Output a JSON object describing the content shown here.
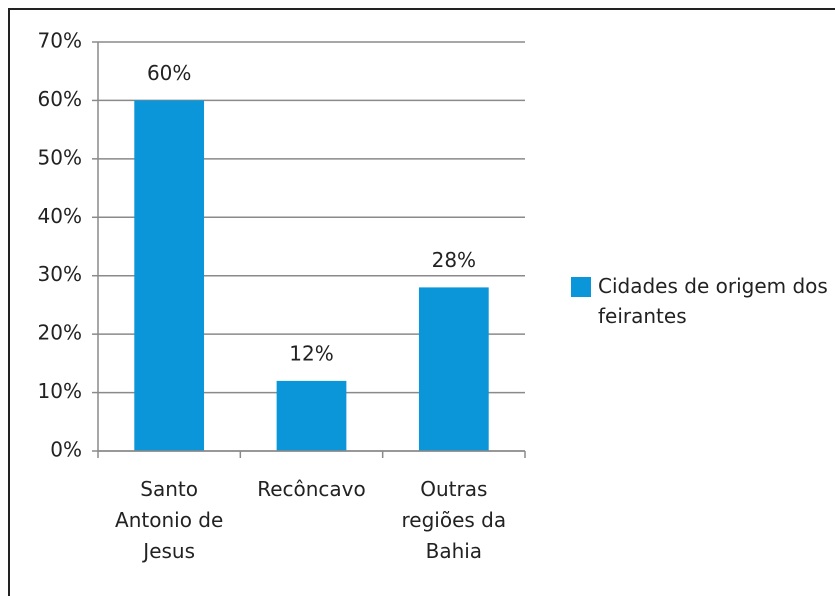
{
  "chart_data": {
    "type": "bar",
    "categories": [
      "Santo Antonio de Jesus",
      "Recôncavo",
      "Outras regiões da Bahia"
    ],
    "series": [
      {
        "name": "Cidades de origem dos feirantes",
        "color": "#0a96d8",
        "values": [
          60,
          12,
          28
        ],
        "value_labels": [
          "60%",
          "12%",
          "28%"
        ]
      }
    ],
    "ylim": [
      0,
      70
    ],
    "yticks": [
      {
        "value": 0,
        "label": "0%"
      },
      {
        "value": 10,
        "label": "10%"
      },
      {
        "value": 20,
        "label": "20%"
      },
      {
        "value": 30,
        "label": "30%"
      },
      {
        "value": 40,
        "label": "40%"
      },
      {
        "value": 50,
        "label": "50%"
      },
      {
        "value": 60,
        "label": "60%"
      },
      {
        "value": 70,
        "label": "70%"
      }
    ],
    "grid": true,
    "legend": "right"
  }
}
